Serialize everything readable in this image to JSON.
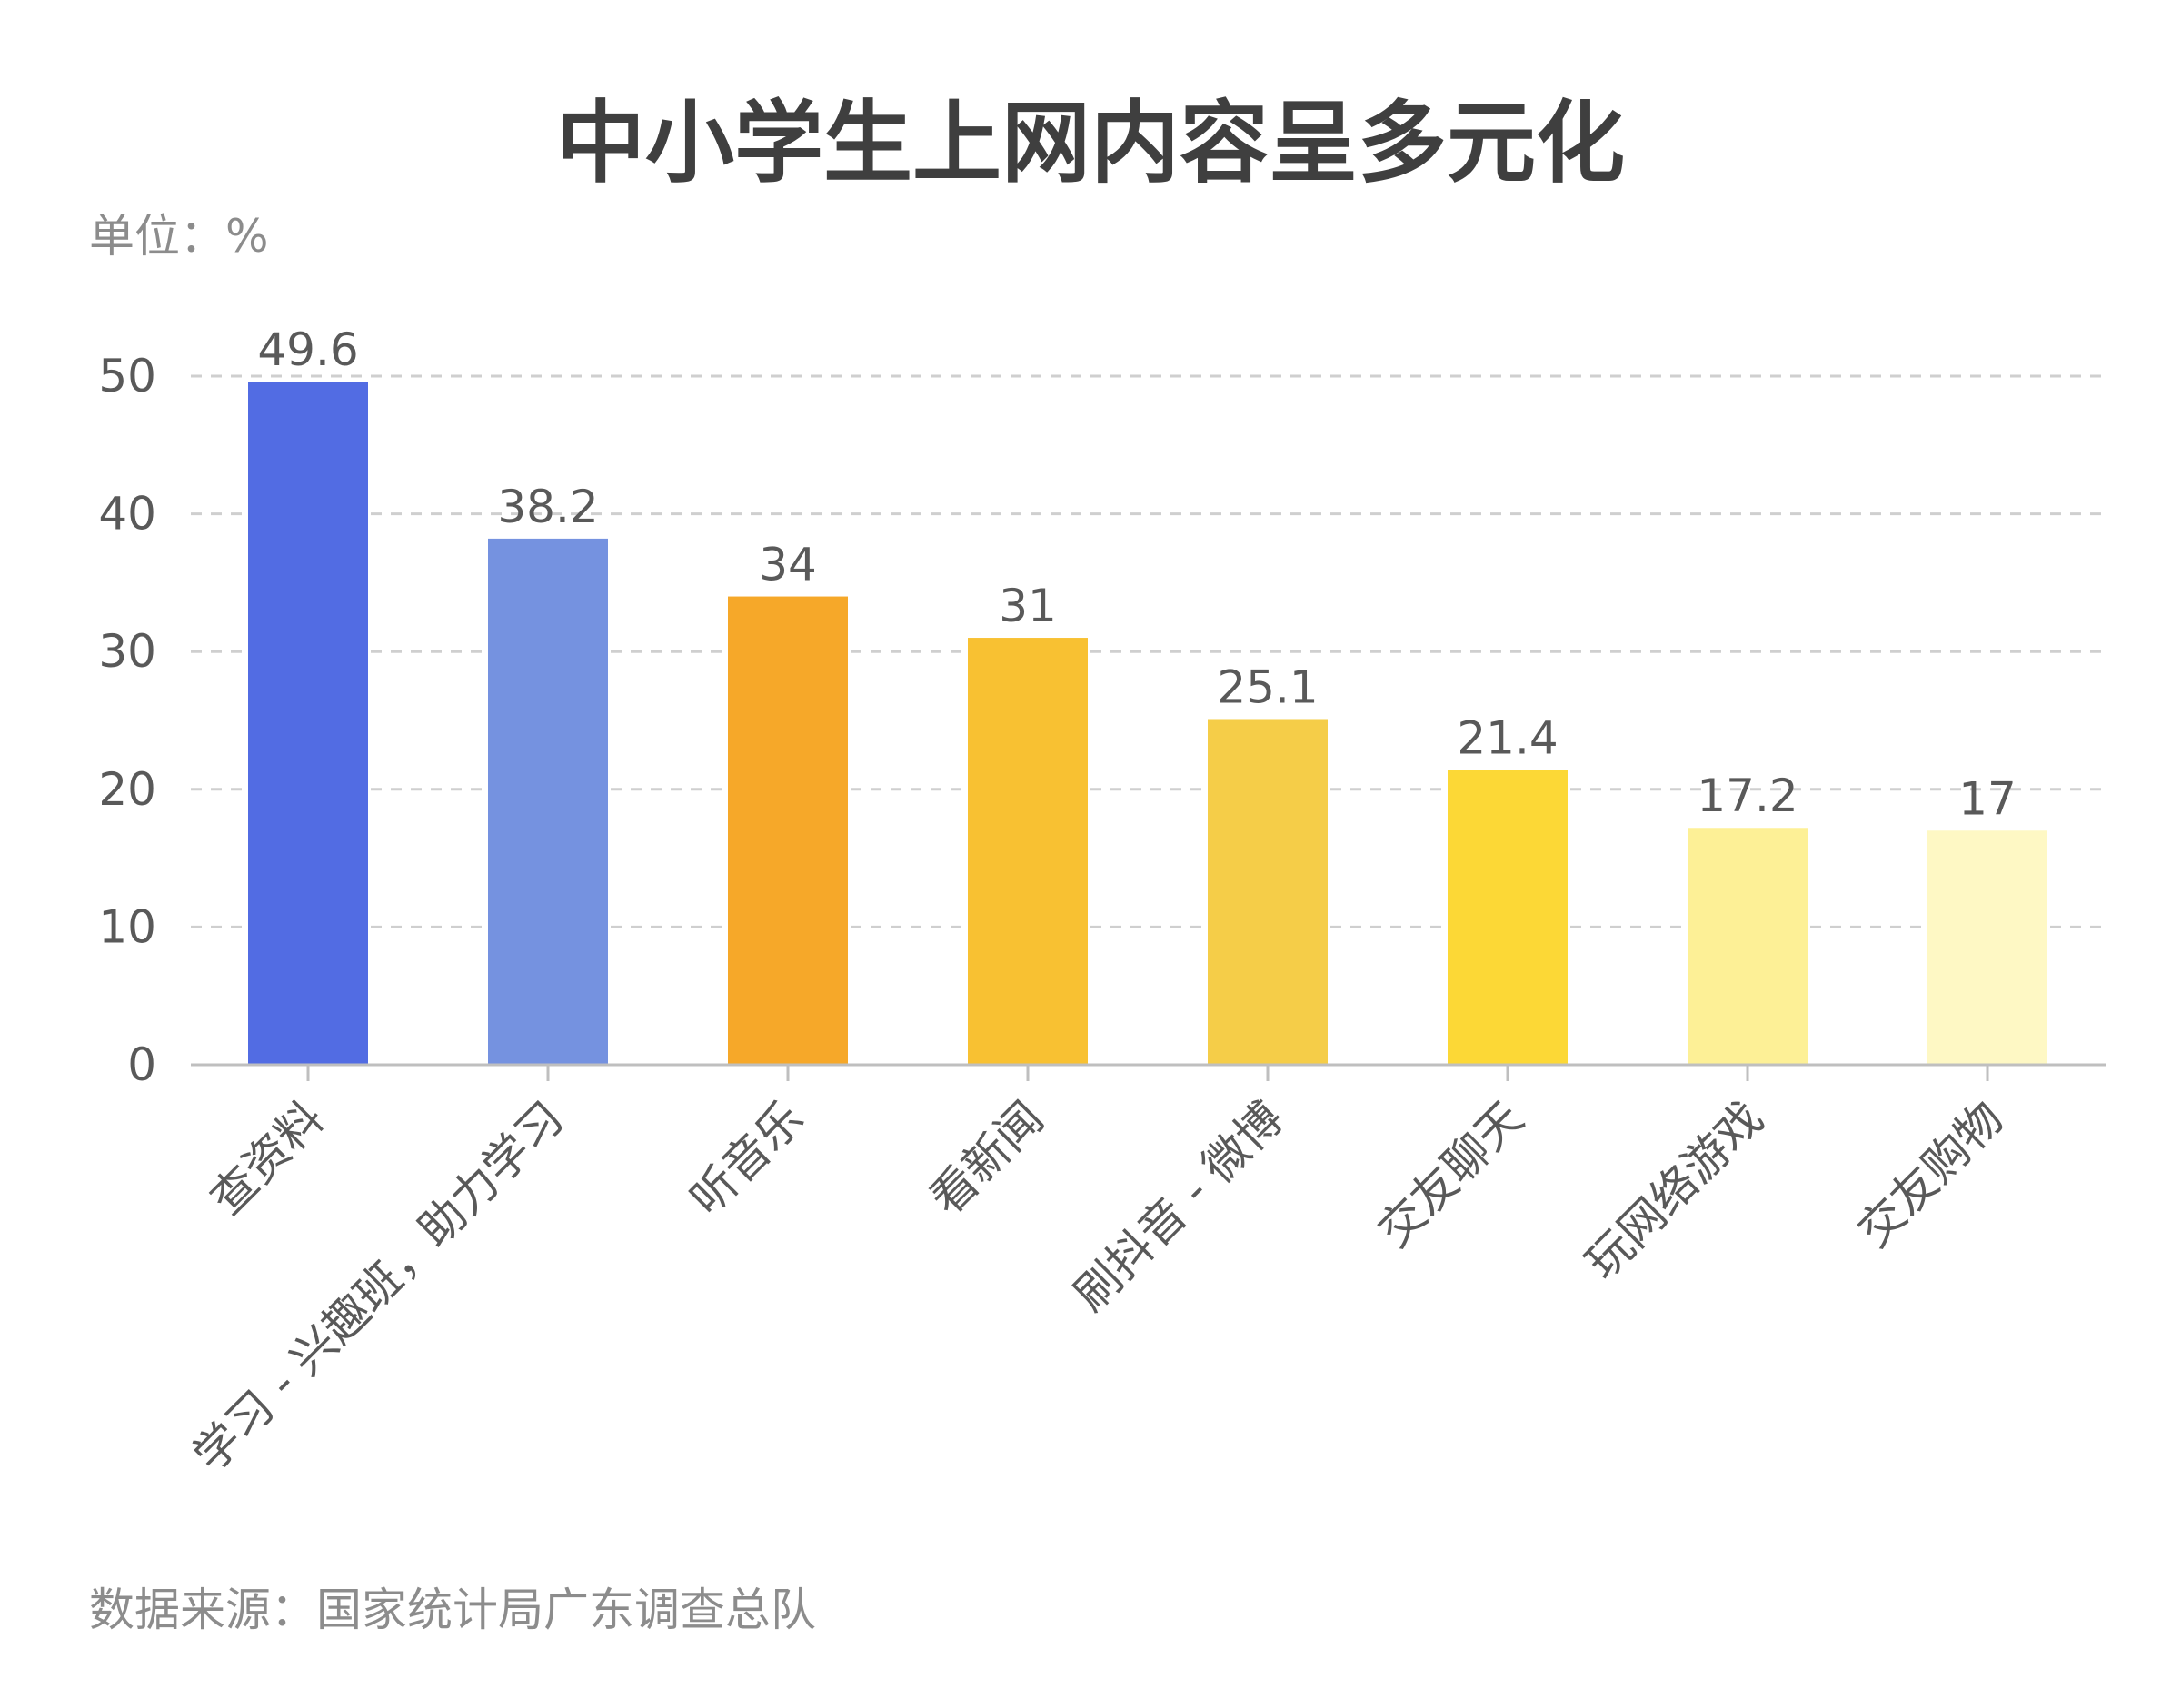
{
  "title": "中小学生上网内容呈多元化",
  "unit_label": "单位：%",
  "source_label": "数据来源：国家统计局广东调查总队",
  "chart_data": {
    "type": "bar",
    "title": "中小学生上网内容呈多元化",
    "xlabel": "",
    "ylabel": "单位：%",
    "ylim": [
      0,
      50
    ],
    "yticks": [
      0,
      10,
      20,
      30,
      40,
      50
    ],
    "yticks_labels": [
      "0",
      "10",
      "20",
      "30",
      "40",
      "50"
    ],
    "grid": "horizontal-dashed",
    "categories": [
      "查资料",
      "学习 - 兴趣班，助力学习",
      "听音乐",
      "看新闻",
      "刷抖音 - 微博",
      "交友聊天",
      "玩网络游戏",
      "交友购物"
    ],
    "values": [
      49.6,
      38.2,
      34,
      31,
      25.1,
      21.4,
      17.2,
      17
    ],
    "value_labels": [
      "49.6",
      "38.2",
      "34",
      "31",
      "25.1",
      "21.4",
      "17.2",
      "17"
    ],
    "colors": [
      "#526ce3",
      "#7592e0",
      "#f6a829",
      "#f8c132",
      "#f5cd48",
      "#fcd836",
      "#fdf096",
      "#fef8c4"
    ]
  }
}
